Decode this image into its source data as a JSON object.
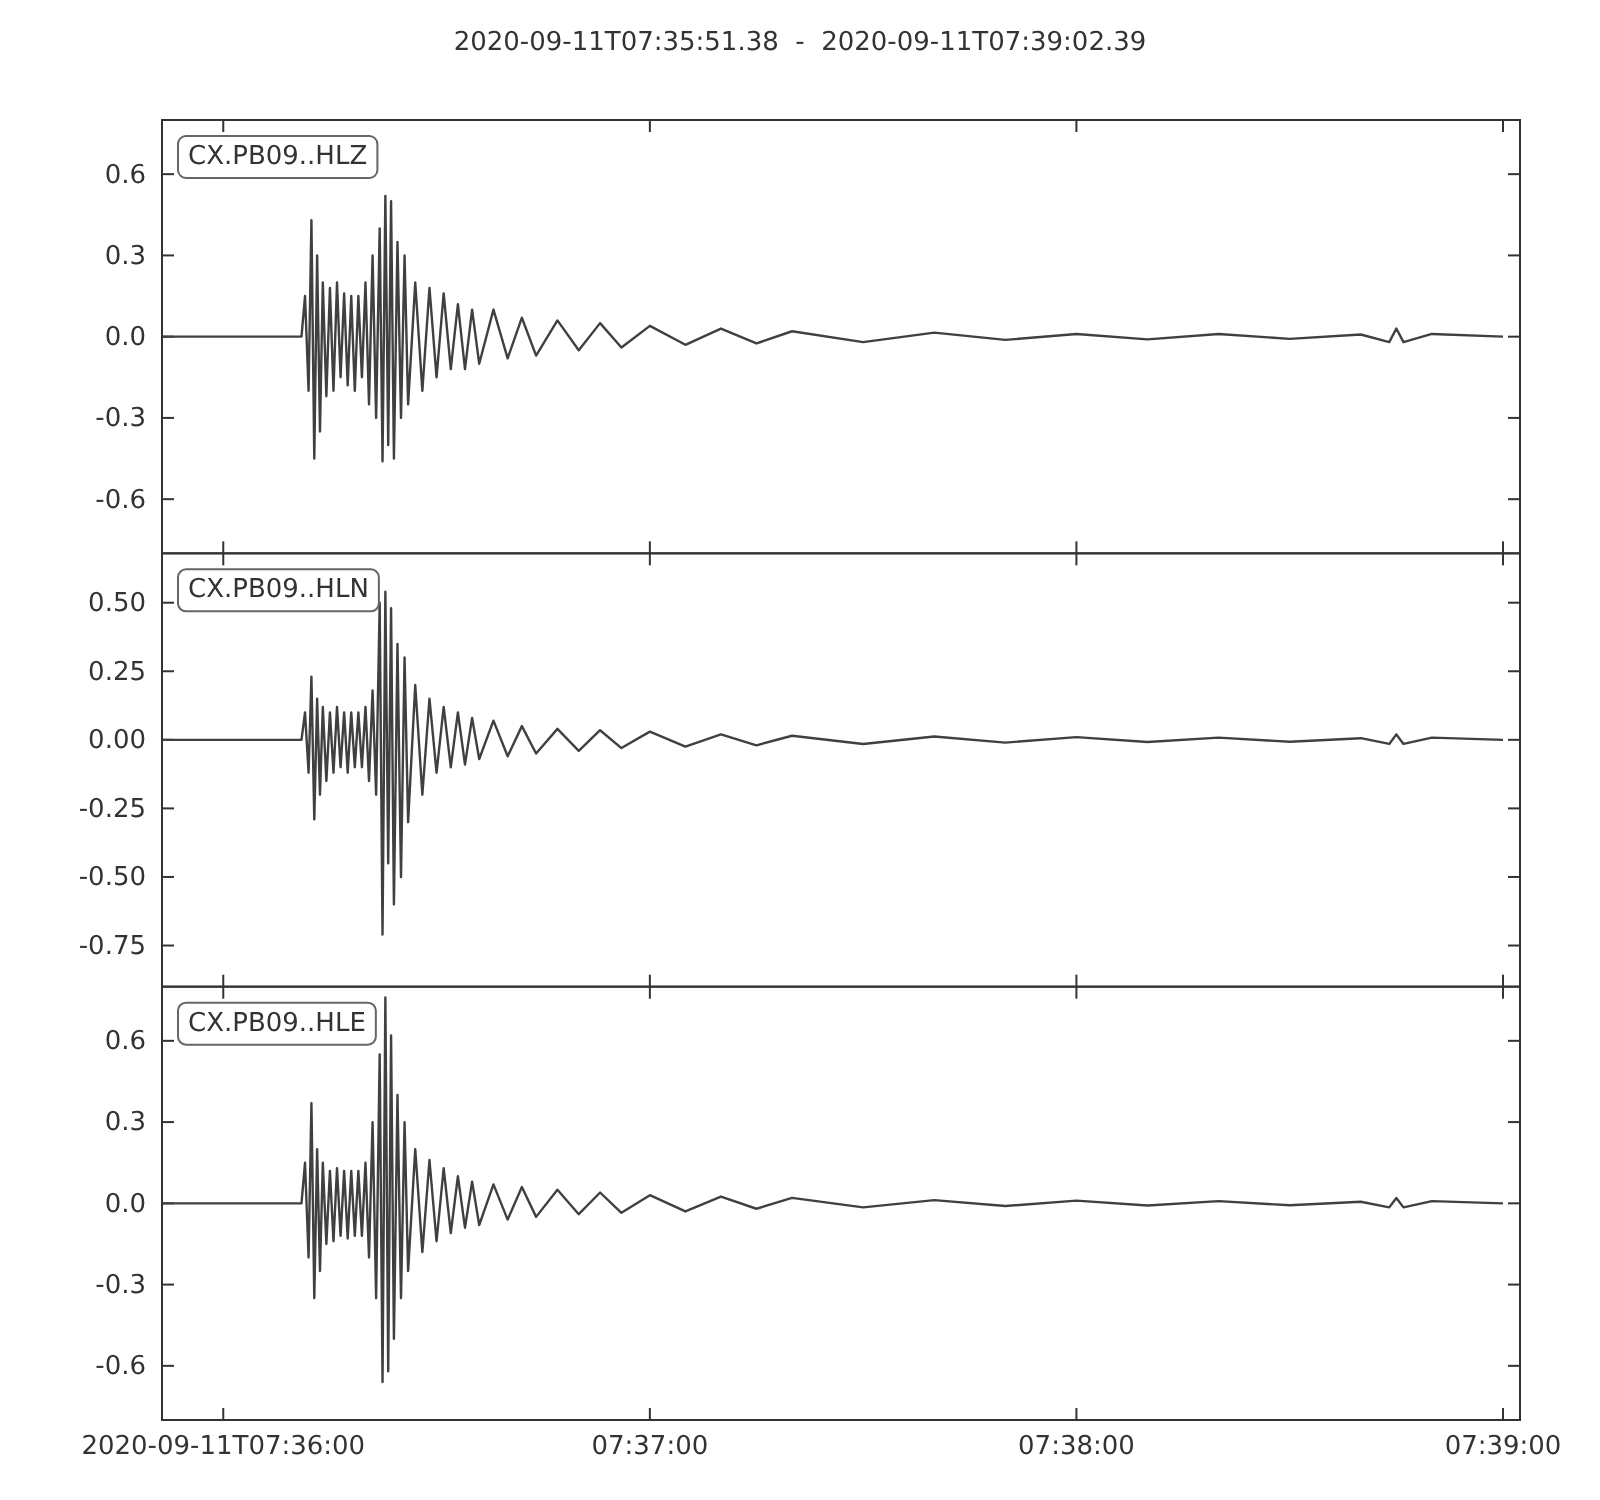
{
  "chart_data": [
    {
      "type": "line",
      "title": "2020-09-11T07:35:51.38  -  2020-09-11T07:39:02.39",
      "annotations": [
        "CX.PB09..HLZ"
      ],
      "grid": false,
      "tick_labels": "y",
      "x": [
        7.597606,
        7.603056,
        7.603194,
        7.603333,
        7.603444,
        7.603556,
        7.603667,
        7.603778,
        7.603889,
        7.604028,
        7.604167,
        7.604306,
        7.604444,
        7.604583,
        7.604722,
        7.604861,
        7.605,
        7.605139,
        7.605278,
        7.605417,
        7.605556,
        7.605694,
        7.605833,
        7.605972,
        7.606111,
        7.606222,
        7.606333,
        7.606444,
        7.606556,
        7.606667,
        7.606806,
        7.606944,
        7.607083,
        7.607222,
        7.6075,
        7.607778,
        7.608056,
        7.608333,
        7.608611,
        7.608889,
        7.609167,
        7.609444,
        7.609722,
        7.61,
        7.610556,
        7.611111,
        7.611667,
        7.612222,
        7.613056,
        7.613889,
        7.614722,
        7.615556,
        7.616667,
        7.618056,
        7.619444,
        7.620833,
        7.622222,
        7.625,
        7.627778,
        7.630556,
        7.633333,
        7.636111,
        7.638889,
        7.641667,
        7.644444,
        7.645556,
        7.645833,
        7.646111,
        7.647222,
        7.65
      ],
      "series": [
        {
          "color": "#404040",
          "values": [
            0,
            0,
            0.15,
            -0.2,
            0.43,
            -0.45,
            0.3,
            -0.35,
            0.2,
            -0.22,
            0.18,
            -0.2,
            0.2,
            -0.15,
            0.16,
            -0.18,
            0.15,
            -0.2,
            0.15,
            -0.15,
            0.2,
            -0.25,
            0.3,
            -0.3,
            0.4,
            -0.46,
            0.52,
            -0.4,
            0.5,
            -0.45,
            0.35,
            -0.3,
            0.3,
            -0.25,
            0.2,
            -0.2,
            0.18,
            -0.15,
            0.16,
            -0.12,
            0.12,
            -0.12,
            0.1,
            -0.1,
            0.1,
            -0.08,
            0.07,
            -0.07,
            0.06,
            -0.05,
            0.05,
            -0.04,
            0.04,
            -0.03,
            0.03,
            -0.025,
            0.02,
            -0.02,
            0.015,
            -0.012,
            0.01,
            -0.01,
            0.01,
            -0.008,
            0.008,
            -0.02,
            0.03,
            -0.02,
            0.01,
            0
          ]
        }
      ],
      "xlim": [
        7.597606,
        7.650664
      ],
      "xticks": [
        {
          "value": 7.6,
          "label": null
        },
        {
          "value": 7.616667,
          "label": null
        },
        {
          "value": 7.633333,
          "label": null
        },
        {
          "value": 7.65,
          "label": null
        }
      ],
      "ylim": [
        -0.8,
        0.8
      ],
      "yticks": [
        {
          "value": -0.6,
          "label": "-0.6"
        },
        {
          "value": -0.3,
          "label": "-0.3"
        },
        {
          "value": 0,
          "label": "0.0"
        },
        {
          "value": 0.3,
          "label": "0.3"
        },
        {
          "value": 0.6,
          "label": "0.6"
        }
      ]
    },
    {
      "type": "line",
      "annotations": [
        "CX.PB09..HLN"
      ],
      "grid": false,
      "tick_labels": "y",
      "x": [
        7.597606,
        7.603056,
        7.603194,
        7.603333,
        7.603444,
        7.603556,
        7.603667,
        7.603778,
        7.603889,
        7.604028,
        7.604167,
        7.604306,
        7.604444,
        7.604583,
        7.604722,
        7.604861,
        7.605,
        7.605139,
        7.605278,
        7.605417,
        7.605556,
        7.605694,
        7.605833,
        7.605972,
        7.606111,
        7.606222,
        7.606333,
        7.606444,
        7.606556,
        7.606667,
        7.606806,
        7.606944,
        7.607083,
        7.607222,
        7.6075,
        7.607778,
        7.608056,
        7.608333,
        7.608611,
        7.608889,
        7.609167,
        7.609444,
        7.609722,
        7.61,
        7.610556,
        7.611111,
        7.611667,
        7.612222,
        7.613056,
        7.613889,
        7.614722,
        7.615556,
        7.616667,
        7.618056,
        7.619444,
        7.620833,
        7.622222,
        7.625,
        7.627778,
        7.630556,
        7.633333,
        7.636111,
        7.638889,
        7.641667,
        7.644444,
        7.645556,
        7.645833,
        7.646111,
        7.647222,
        7.65
      ],
      "series": [
        {
          "color": "#404040",
          "values": [
            0,
            0,
            0.1,
            -0.12,
            0.23,
            -0.29,
            0.15,
            -0.2,
            0.12,
            -0.15,
            0.1,
            -0.12,
            0.12,
            -0.1,
            0.1,
            -0.12,
            0.1,
            -0.1,
            0.1,
            -0.1,
            0.12,
            -0.15,
            0.18,
            -0.2,
            0.5,
            -0.71,
            0.54,
            -0.45,
            0.48,
            -0.6,
            0.35,
            -0.5,
            0.3,
            -0.3,
            0.2,
            -0.2,
            0.15,
            -0.12,
            0.12,
            -0.1,
            0.1,
            -0.09,
            0.08,
            -0.07,
            0.07,
            -0.06,
            0.05,
            -0.05,
            0.04,
            -0.04,
            0.035,
            -0.03,
            0.03,
            -0.025,
            0.02,
            -0.02,
            0.015,
            -0.015,
            0.012,
            -0.01,
            0.01,
            -0.008,
            0.008,
            -0.007,
            0.006,
            -0.015,
            0.02,
            -0.015,
            0.008,
            0
          ]
        }
      ],
      "xlim": [
        7.597606,
        7.650664
      ],
      "xticks": [
        {
          "value": 7.6,
          "label": null
        },
        {
          "value": 7.616667,
          "label": null
        },
        {
          "value": 7.633333,
          "label": null
        },
        {
          "value": 7.65,
          "label": null
        }
      ],
      "ylim": [
        -0.9,
        0.68
      ],
      "yticks": [
        {
          "value": -0.75,
          "label": "-0.75"
        },
        {
          "value": -0.5,
          "label": "-0.50"
        },
        {
          "value": -0.25,
          "label": "-0.25"
        },
        {
          "value": 0,
          "label": "0.00"
        },
        {
          "value": 0.25,
          "label": "0.25"
        },
        {
          "value": 0.5,
          "label": "0.50"
        }
      ]
    },
    {
      "type": "line",
      "annotations": [
        "CX.PB09..HLE"
      ],
      "grid": false,
      "x": [
        7.597606,
        7.603056,
        7.603194,
        7.603333,
        7.603444,
        7.603556,
        7.603667,
        7.603778,
        7.603889,
        7.604028,
        7.604167,
        7.604306,
        7.604444,
        7.604583,
        7.604722,
        7.604861,
        7.605,
        7.605139,
        7.605278,
        7.605417,
        7.605556,
        7.605694,
        7.605833,
        7.605972,
        7.606111,
        7.606222,
        7.606333,
        7.606444,
        7.606556,
        7.606667,
        7.606806,
        7.606944,
        7.607083,
        7.607222,
        7.6075,
        7.607778,
        7.608056,
        7.608333,
        7.608611,
        7.608889,
        7.609167,
        7.609444,
        7.609722,
        7.61,
        7.610556,
        7.611111,
        7.611667,
        7.612222,
        7.613056,
        7.613889,
        7.614722,
        7.615556,
        7.616667,
        7.618056,
        7.619444,
        7.620833,
        7.622222,
        7.625,
        7.627778,
        7.630556,
        7.633333,
        7.636111,
        7.638889,
        7.641667,
        7.644444,
        7.645556,
        7.645833,
        7.646111,
        7.647222,
        7.65
      ],
      "series": [
        {
          "color": "#404040",
          "values": [
            0,
            0,
            0.15,
            -0.2,
            0.37,
            -0.35,
            0.2,
            -0.25,
            0.15,
            -0.15,
            0.12,
            -0.14,
            0.13,
            -0.12,
            0.12,
            -0.13,
            0.12,
            -0.12,
            0.12,
            -0.12,
            0.15,
            -0.2,
            0.3,
            -0.35,
            0.55,
            -0.66,
            0.76,
            -0.62,
            0.62,
            -0.5,
            0.4,
            -0.35,
            0.3,
            -0.25,
            0.2,
            -0.18,
            0.16,
            -0.14,
            0.13,
            -0.11,
            0.1,
            -0.09,
            0.08,
            -0.08,
            0.07,
            -0.06,
            0.06,
            -0.05,
            0.05,
            -0.04,
            0.04,
            -0.035,
            0.03,
            -0.03,
            0.025,
            -0.02,
            0.02,
            -0.015,
            0.012,
            -0.01,
            0.01,
            -0.008,
            0.008,
            -0.007,
            0.006,
            -0.015,
            0.02,
            -0.015,
            0.008,
            0
          ]
        }
      ],
      "xlim": [
        7.597606,
        7.650664
      ],
      "xticks": [
        {
          "value": 7.6,
          "label": "2020-09-11T07:36:00"
        },
        {
          "value": 7.616667,
          "label": "07:37:00"
        },
        {
          "value": 7.633333,
          "label": "07:38:00"
        },
        {
          "value": 7.65,
          "label": "07:39:00"
        }
      ],
      "ylim": [
        -0.8,
        0.8
      ],
      "yticks": [
        {
          "value": -0.6,
          "label": "-0.6"
        },
        {
          "value": -0.3,
          "label": "-0.3"
        },
        {
          "value": 0,
          "label": "0.0"
        },
        {
          "value": 0.3,
          "label": "0.3"
        },
        {
          "value": 0.6,
          "label": "0.6"
        }
      ]
    }
  ]
}
